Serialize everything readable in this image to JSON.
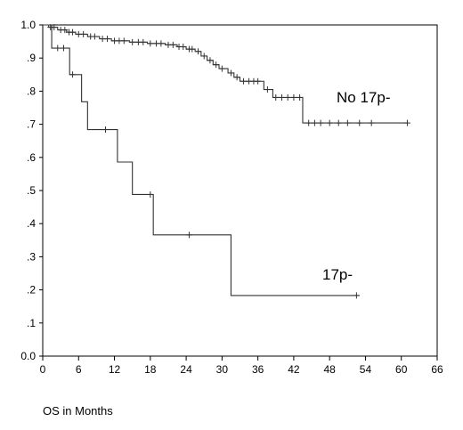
{
  "chart_data": {
    "type": "line",
    "subtype": "kaplan-meier step",
    "title": "",
    "xlabel": "OS in Months",
    "ylabel": "",
    "xlim": [
      0,
      66
    ],
    "ylim": [
      0,
      1.0
    ],
    "x_ticks": [
      0,
      6,
      12,
      18,
      24,
      30,
      36,
      42,
      48,
      54,
      60,
      66
    ],
    "x_tick_labels": [
      "0",
      "6",
      "12",
      "18",
      "24",
      "30",
      "36",
      "42",
      "48",
      "54",
      "60",
      "66"
    ],
    "y_ticks": [
      0,
      0.1,
      0.2,
      0.3,
      0.4,
      0.5,
      0.6,
      0.7,
      0.8,
      0.9,
      1.0
    ],
    "y_tick_labels": [
      "0.0",
      ".1",
      ".2",
      ".3",
      ".4",
      ".5",
      ".6",
      ".7",
      ".8",
      ".9",
      "1.0"
    ],
    "grid": false,
    "legend": "none",
    "series": [
      {
        "name": "No 17p-",
        "color": "#333333",
        "steps": [
          [
            0,
            1.0
          ],
          [
            1.0,
            0.993
          ],
          [
            2.5,
            0.985
          ],
          [
            4.0,
            0.978
          ],
          [
            5.5,
            0.972
          ],
          [
            7.5,
            0.965
          ],
          [
            9.5,
            0.958
          ],
          [
            11.5,
            0.952
          ],
          [
            14.5,
            0.948
          ],
          [
            17.5,
            0.944
          ],
          [
            20.5,
            0.94
          ],
          [
            22.5,
            0.934
          ],
          [
            24.0,
            0.927
          ],
          [
            25.5,
            0.92
          ],
          [
            26.5,
            0.906
          ],
          [
            27.5,
            0.893
          ],
          [
            28.5,
            0.88
          ],
          [
            29.5,
            0.868
          ],
          [
            31.0,
            0.855
          ],
          [
            32.0,
            0.842
          ],
          [
            33.0,
            0.83
          ],
          [
            37.0,
            0.805
          ],
          [
            38.5,
            0.781
          ],
          [
            43.5,
            0.704
          ],
          [
            61,
            0.704
          ]
        ],
        "censored": [
          [
            1.3,
            0.993
          ],
          [
            1.9,
            0.993
          ],
          [
            3.0,
            0.985
          ],
          [
            3.7,
            0.985
          ],
          [
            4.4,
            0.978
          ],
          [
            5.0,
            0.978
          ],
          [
            6.0,
            0.972
          ],
          [
            6.8,
            0.972
          ],
          [
            8.0,
            0.965
          ],
          [
            8.7,
            0.965
          ],
          [
            10.0,
            0.958
          ],
          [
            10.8,
            0.958
          ],
          [
            12.0,
            0.952
          ],
          [
            12.8,
            0.952
          ],
          [
            13.6,
            0.952
          ],
          [
            15.0,
            0.948
          ],
          [
            16.0,
            0.948
          ],
          [
            16.8,
            0.948
          ],
          [
            18.0,
            0.944
          ],
          [
            19.0,
            0.944
          ],
          [
            19.8,
            0.944
          ],
          [
            21.0,
            0.94
          ],
          [
            21.8,
            0.94
          ],
          [
            22.8,
            0.934
          ],
          [
            23.5,
            0.934
          ],
          [
            24.5,
            0.927
          ],
          [
            25.0,
            0.927
          ],
          [
            26.0,
            0.92
          ],
          [
            27.0,
            0.906
          ],
          [
            28.0,
            0.893
          ],
          [
            29.0,
            0.88
          ],
          [
            30.0,
            0.868
          ],
          [
            31.5,
            0.855
          ],
          [
            32.5,
            0.842
          ],
          [
            33.6,
            0.83
          ],
          [
            34.5,
            0.83
          ],
          [
            35.3,
            0.83
          ],
          [
            36.0,
            0.83
          ],
          [
            37.6,
            0.805
          ],
          [
            39.0,
            0.781
          ],
          [
            40.0,
            0.781
          ],
          [
            41.0,
            0.781
          ],
          [
            42.0,
            0.781
          ],
          [
            43.0,
            0.781
          ],
          [
            44.5,
            0.704
          ],
          [
            45.5,
            0.704
          ],
          [
            46.5,
            0.704
          ],
          [
            48.0,
            0.704
          ],
          [
            49.5,
            0.704
          ],
          [
            51.0,
            0.704
          ],
          [
            53.0,
            0.704
          ],
          [
            55.0,
            0.704
          ],
          [
            61.0,
            0.704
          ]
        ]
      },
      {
        "name": "17p-",
        "color": "#333333",
        "steps": [
          [
            0,
            1.0
          ],
          [
            1.5,
            0.93
          ],
          [
            4.5,
            0.85
          ],
          [
            6.5,
            0.768
          ],
          [
            7.5,
            0.684
          ],
          [
            12.5,
            0.586
          ],
          [
            15.0,
            0.488
          ],
          [
            18.5,
            0.366
          ],
          [
            31.5,
            0.183
          ],
          [
            53.0,
            0.183
          ]
        ],
        "censored": [
          [
            2.5,
            0.93
          ],
          [
            3.5,
            0.93
          ],
          [
            5.0,
            0.85
          ],
          [
            10.5,
            0.684
          ],
          [
            18.0,
            0.488
          ],
          [
            24.5,
            0.366
          ],
          [
            52.5,
            0.183
          ]
        ]
      }
    ]
  }
}
